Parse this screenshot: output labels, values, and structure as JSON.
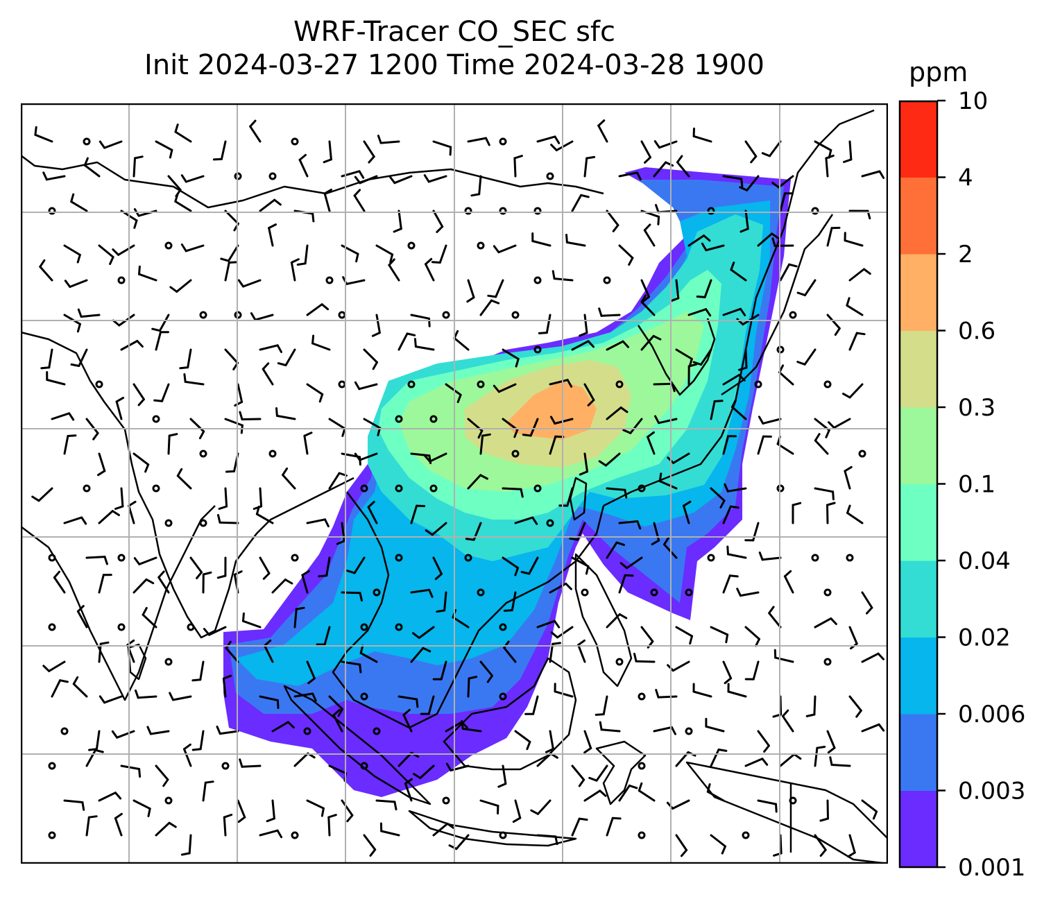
{
  "title": {
    "line1": "WRF-Tracer CO_SEC sfc",
    "line2": "Init 2024-03-27 1200 Time 2024-03-28 1900"
  },
  "colorbar": {
    "unit": "ppm",
    "ticks": [
      "0.001",
      "0.003",
      "0.006",
      "0.02",
      "0.04",
      "0.1",
      "0.3",
      "0.6",
      "2",
      "4",
      "10"
    ],
    "colors": [
      "#6a2cff",
      "#3a78f2",
      "#06b6ec",
      "#33ddd4",
      "#6effc3",
      "#9cf89a",
      "#d4de8a",
      "#ffb064",
      "#ff7038",
      "#ff2a14"
    ]
  },
  "chart_data": {
    "type": "heatmap",
    "variable": "CO_SEC",
    "level": "sfc",
    "units": "ppm",
    "levels": [
      0.001,
      0.003,
      0.006,
      0.02,
      0.04,
      0.1,
      0.3,
      0.6,
      2,
      4,
      10
    ],
    "grid": true,
    "overlay": "wind barbs"
  }
}
